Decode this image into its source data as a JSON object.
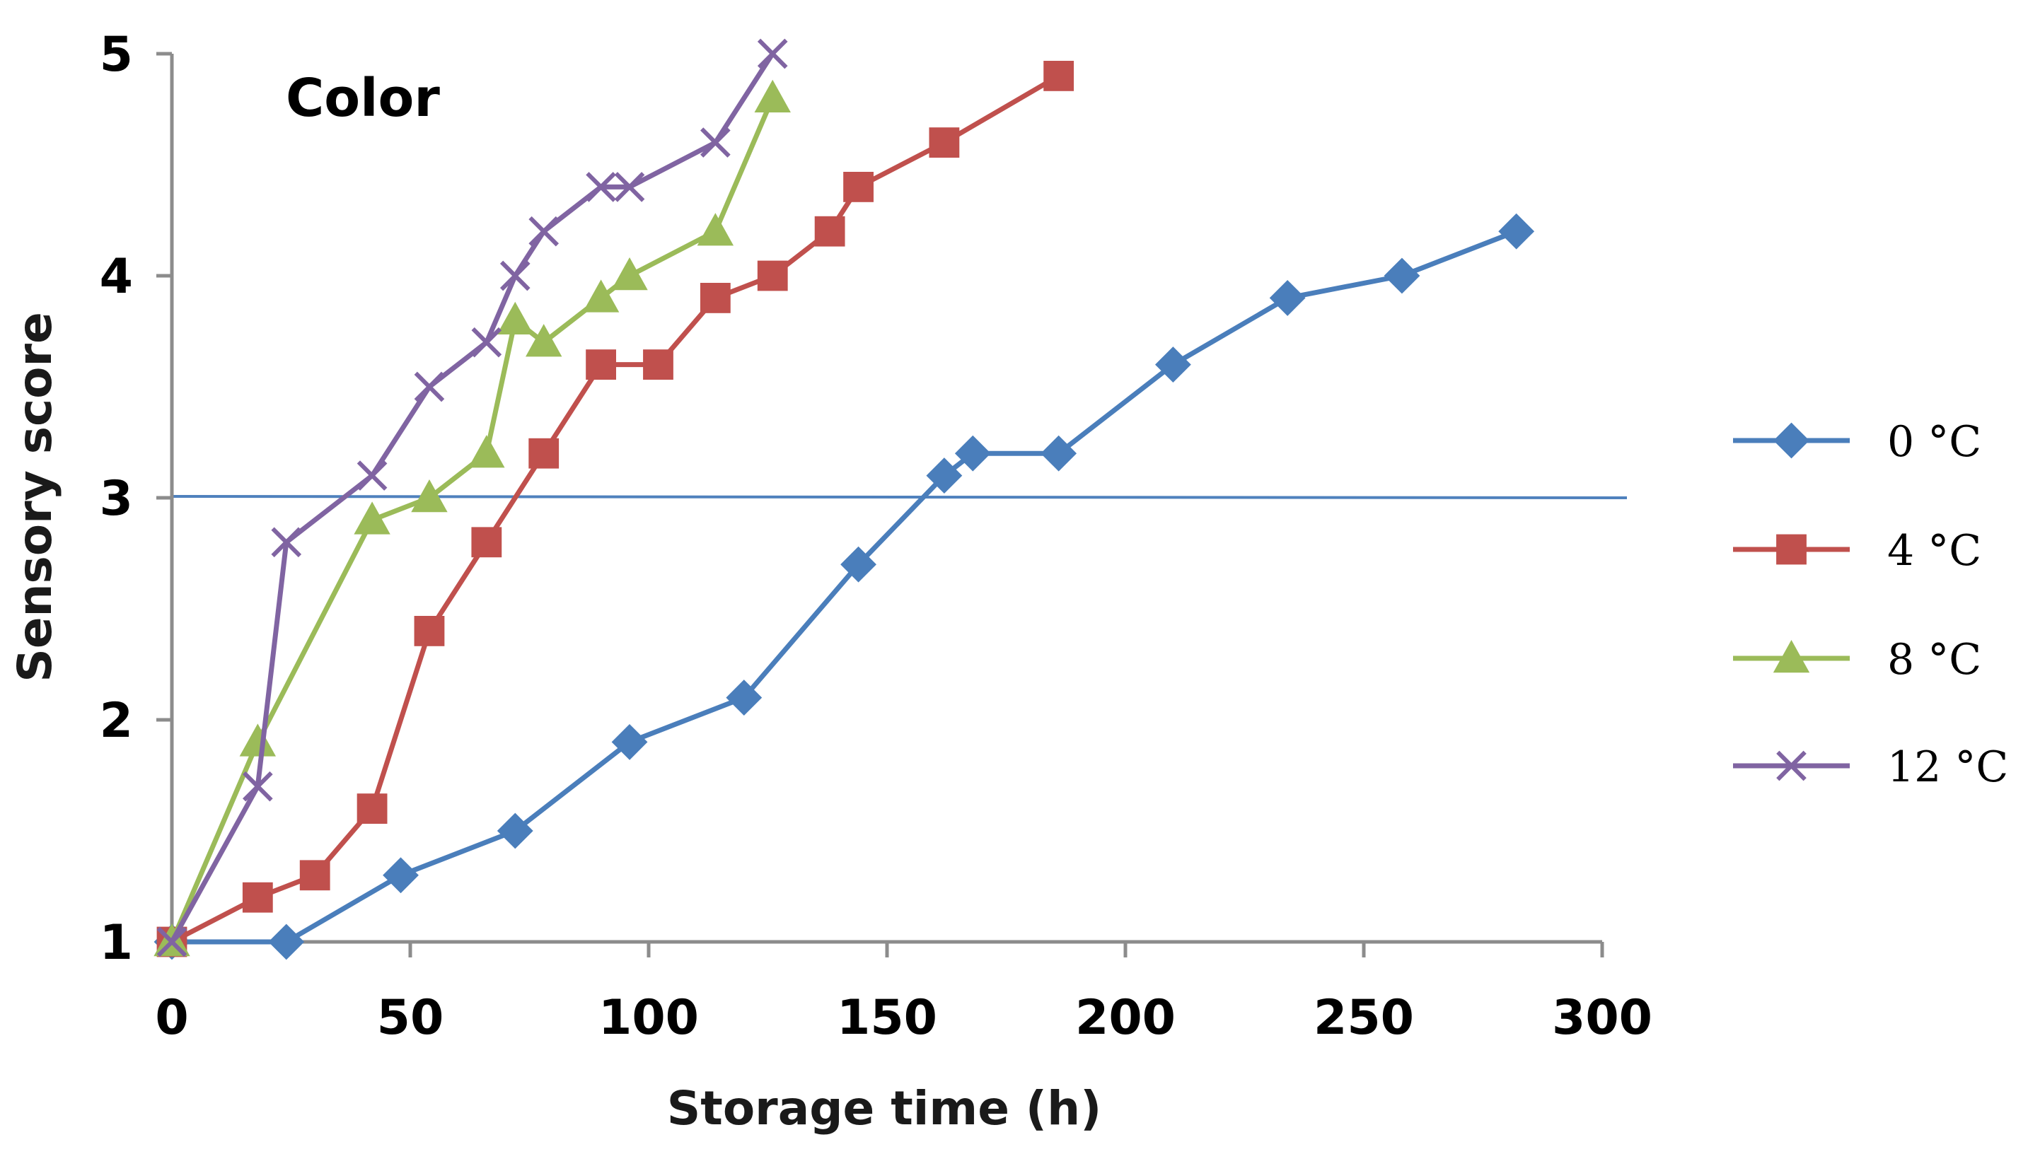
{
  "chart_data": {
    "type": "line",
    "title": "Color",
    "xlabel": "Storage time (h)",
    "ylabel": "Sensory score",
    "xlim": [
      0,
      300
    ],
    "ylim": [
      1,
      5
    ],
    "x_ticks": [
      0,
      50,
      100,
      150,
      200,
      250,
      300
    ],
    "y_ticks": [
      1,
      2,
      3,
      4,
      5
    ],
    "threshold": {
      "y": 3,
      "color": "#4f81bd"
    },
    "legend_position": "right",
    "series": [
      {
        "name": "0 °C",
        "color": "#4a7ebb",
        "marker": "diamond",
        "x": [
          0,
          24,
          48,
          72,
          96,
          120,
          144,
          162,
          168,
          186,
          210,
          234,
          258,
          282
        ],
        "y": [
          1.0,
          1.0,
          1.3,
          1.5,
          1.9,
          2.1,
          2.7,
          3.1,
          3.2,
          3.2,
          3.6,
          3.9,
          4.0,
          4.2
        ]
      },
      {
        "name": "4 °C",
        "color": "#c0504d",
        "marker": "square",
        "x": [
          0,
          18,
          30,
          42,
          54,
          66,
          78,
          90,
          102,
          114,
          126,
          138,
          144,
          162,
          186
        ],
        "y": [
          1.0,
          1.2,
          1.3,
          1.6,
          2.4,
          2.8,
          3.2,
          3.6,
          3.6,
          3.9,
          4.0,
          4.2,
          4.4,
          4.6,
          4.9
        ]
      },
      {
        "name": "8 °C",
        "color": "#9bbb59",
        "marker": "triangle",
        "x": [
          0,
          18,
          42,
          54,
          66,
          72,
          78,
          90,
          96,
          114,
          126
        ],
        "y": [
          1.0,
          1.9,
          2.9,
          3.0,
          3.2,
          3.8,
          3.7,
          3.9,
          4.0,
          4.2,
          4.8
        ]
      },
      {
        "name": "12 °C",
        "color": "#8064a2",
        "marker": "x",
        "x": [
          0,
          18,
          24,
          42,
          54,
          66,
          72,
          78,
          90,
          96,
          114,
          126
        ],
        "y": [
          1.0,
          1.7,
          2.8,
          3.1,
          3.5,
          3.7,
          4.0,
          4.2,
          4.4,
          4.4,
          4.6,
          5.0
        ]
      }
    ]
  }
}
